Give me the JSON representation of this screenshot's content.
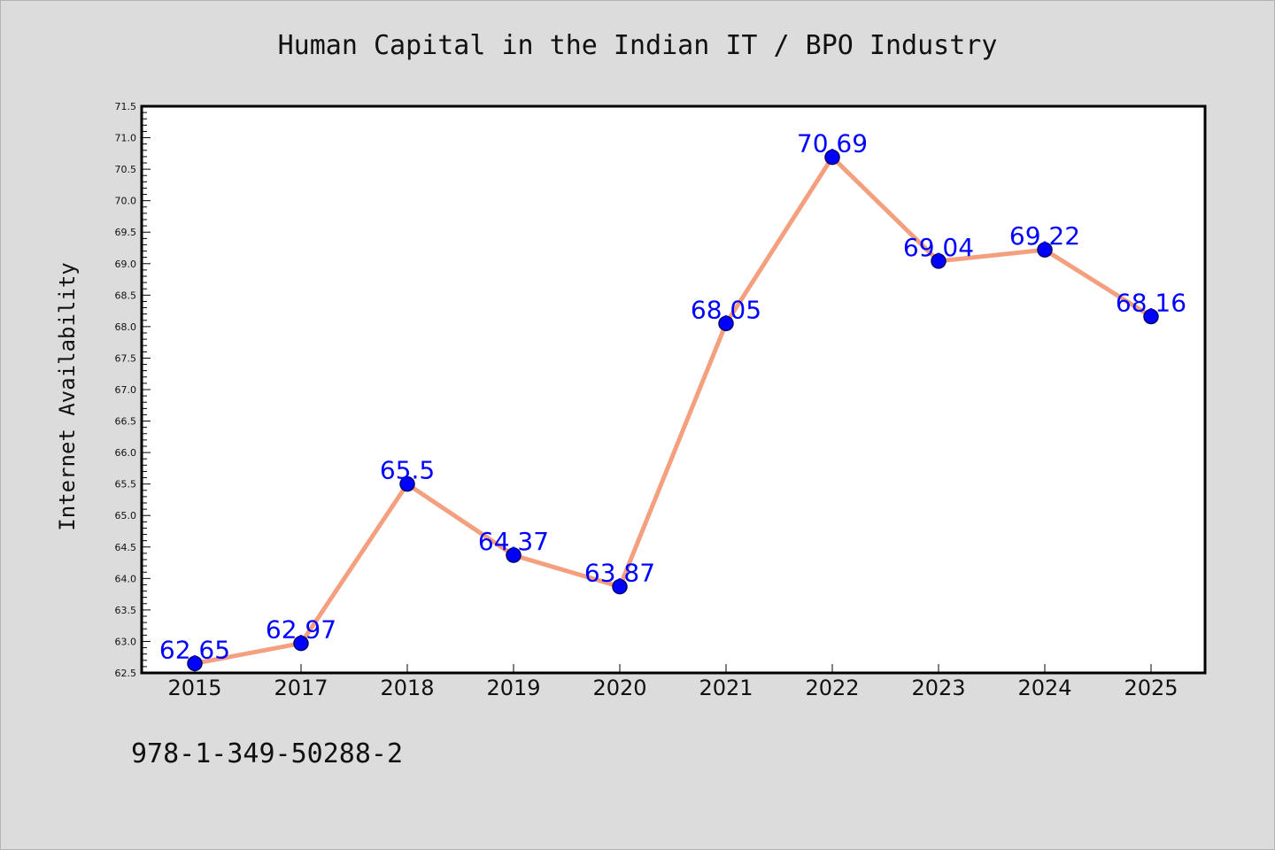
{
  "chart_data": {
    "type": "line",
    "title": "Human Capital in the Indian IT / BPO Industry",
    "ylabel": "Internet Availability",
    "xlabel": "",
    "categories": [
      "2015",
      "2017",
      "2018",
      "2019",
      "2020",
      "2021",
      "2022",
      "2023",
      "2024",
      "2025"
    ],
    "series": [
      {
        "values": [
          62.65,
          62.97,
          65.5,
          64.37,
          63.87,
          68.05,
          70.69,
          69.04,
          69.22,
          68.16
        ],
        "data_labels": [
          "62.65",
          "62.97",
          "65.5",
          "64.37",
          "63.87",
          "68.05",
          "70.69",
          "69.04",
          "69.22",
          "68.16"
        ],
        "line_color": "#f4a07f",
        "marker_color": "#0000ff",
        "label_color": "#0000ff"
      }
    ],
    "ylim": [
      62.5,
      71.5
    ],
    "yticks": [
      "62.5",
      "63.0",
      "63.5",
      "64.0",
      "64.5",
      "65.0",
      "65.5",
      "66.0",
      "66.5",
      "67.0",
      "67.5",
      "68.0",
      "68.5",
      "69.0",
      "69.5",
      "70.0",
      "70.5",
      "71.0",
      "71.5"
    ],
    "grid": false,
    "legend": "none",
    "background_color": "#dcdcdc",
    "plot_background_color": "#ffffff"
  },
  "footer": {
    "code": "978-1-349-50288-2"
  }
}
